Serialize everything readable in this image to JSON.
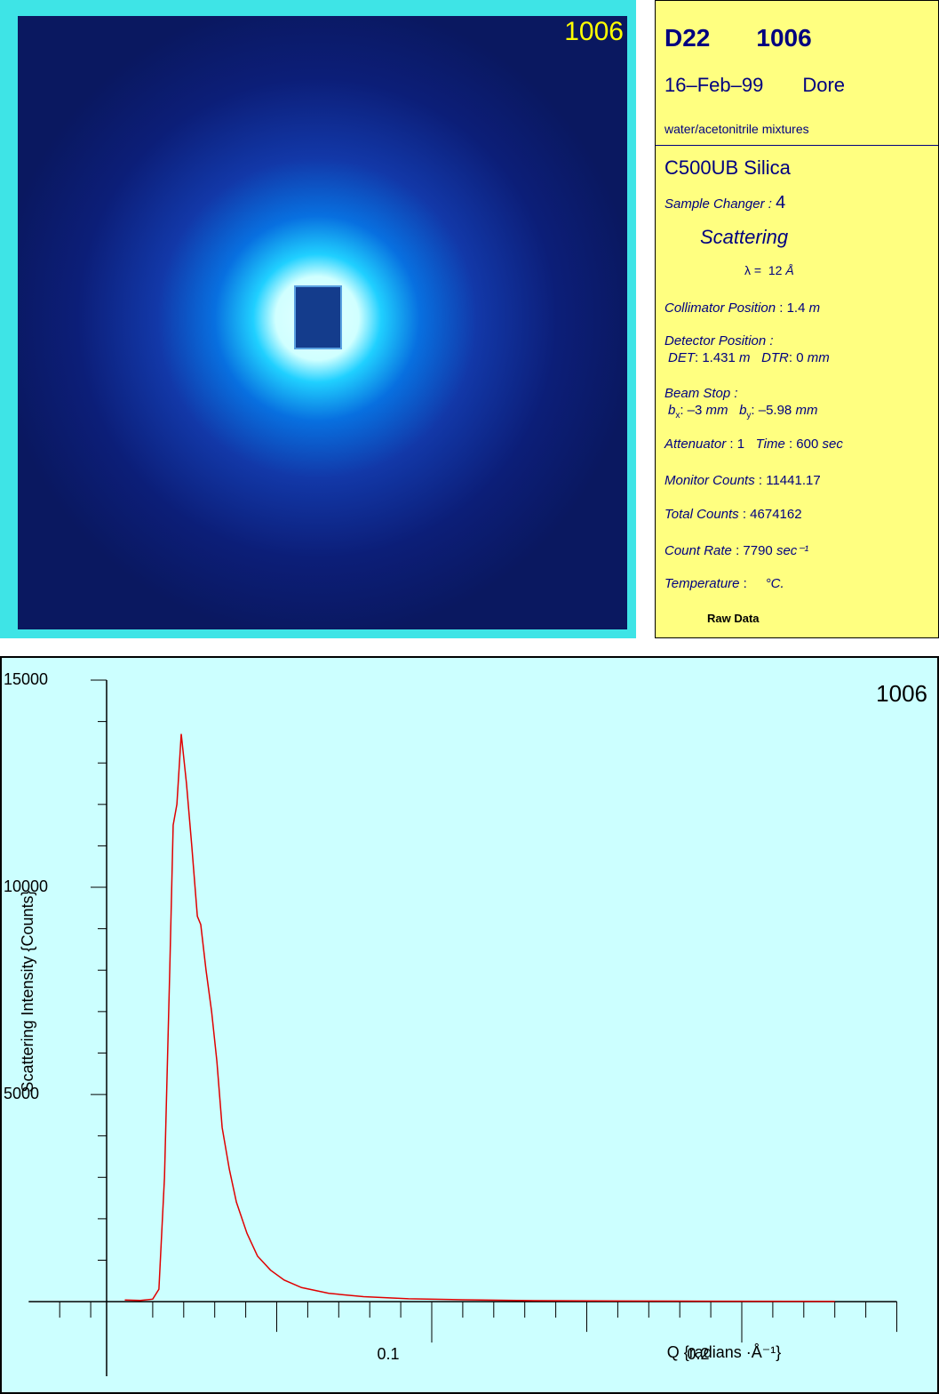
{
  "detector_image": {
    "label": "1006"
  },
  "info": {
    "instrument": "D22",
    "run": "1006",
    "date": "16–Feb–99",
    "user": "Dore",
    "title": "water/acetonitrile mixtures",
    "sample": "C500UB Silica",
    "sample_changer": {
      "label": "Sample Changer :",
      "value": "4"
    },
    "mode": "Scattering",
    "wavelength": {
      "symbol": "λ =",
      "value": "12",
      "unit": "Å"
    },
    "collimator": {
      "label": "Collimator Position",
      "sep": ":",
      "value": "1.4",
      "unit": "m"
    },
    "detector": {
      "label": "Detector Position :",
      "det_label": "DET",
      "det_value": ": 1.431",
      "det_unit": "m",
      "dtr_label": "DTR",
      "dtr_value": ": 0",
      "dtr_unit": "mm"
    },
    "beam_stop": {
      "label": "Beam Stop :",
      "bx_label": "b",
      "bx_sub": "x",
      "bx_value": ": –3",
      "bx_unit": "mm",
      "by_label": "b",
      "by_sub": "y",
      "by_value": ": –5.98",
      "by_unit": "mm"
    },
    "attenuator": {
      "label": "Attenuator",
      "value": ": 1"
    },
    "time": {
      "label": "Time",
      "value": ": 600",
      "unit": "sec"
    },
    "monitor": {
      "label": "Monitor Counts",
      "value": ": 11441.17"
    },
    "total": {
      "label": "Total Counts",
      "value": ": 4674162"
    },
    "count_rate": {
      "label": "Count Rate",
      "value": ": 7790",
      "unit": "sec⁻¹"
    },
    "temperature": {
      "label": "Temperature",
      "value": ":",
      "unit": "°C."
    },
    "footer": "Raw Data"
  },
  "chart_data": {
    "type": "line",
    "annotation": "1006",
    "x_label": "Q {radians ·Å⁻¹}",
    "y_label": "Scattering Intensity {Counts}",
    "xlim": [
      -0.03,
      0.25
    ],
    "ylim": [
      -1800,
      15000
    ],
    "xticks": [
      0.1,
      0.2
    ],
    "xmidticks": [
      0.05,
      0.15,
      0.25
    ],
    "xminorticks": [
      -0.02,
      -0.01,
      0.01,
      0.02,
      0.03,
      0.04,
      0.06,
      0.07,
      0.08,
      0.09,
      0.11,
      0.12,
      0.13,
      0.14,
      0.16,
      0.17,
      0.18,
      0.19,
      0.21,
      0.22,
      0.23,
      0.24
    ],
    "yticks": [
      5000,
      10000,
      15000
    ],
    "yminorticks": [
      1000,
      2000,
      3000,
      4000,
      6000,
      7000,
      8000,
      9000,
      11000,
      12000,
      13000,
      14000
    ],
    "series": [
      {
        "color": "#e00000",
        "x": [
          0.001,
          0.006,
          0.01,
          0.012,
          0.0138,
          0.0155,
          0.0166,
          0.0178,
          0.0192,
          0.0209,
          0.0226,
          0.0244,
          0.0255,
          0.0272,
          0.029,
          0.0307,
          0.0324,
          0.0347,
          0.037,
          0.0404,
          0.0438,
          0.048,
          0.0524,
          0.058,
          0.0668,
          0.078,
          0.0925,
          0.11,
          0.133,
          0.161,
          0.19,
          0.23
        ],
        "values": [
          40,
          30,
          60,
          300,
          3000,
          8000,
          11500,
          12000,
          13700,
          12500,
          11000,
          9300,
          9100,
          8000,
          7000,
          5800,
          4200,
          3200,
          2400,
          1650,
          1100,
          760,
          520,
          340,
          200,
          120,
          70,
          45,
          25,
          15,
          10,
          5
        ]
      }
    ]
  }
}
